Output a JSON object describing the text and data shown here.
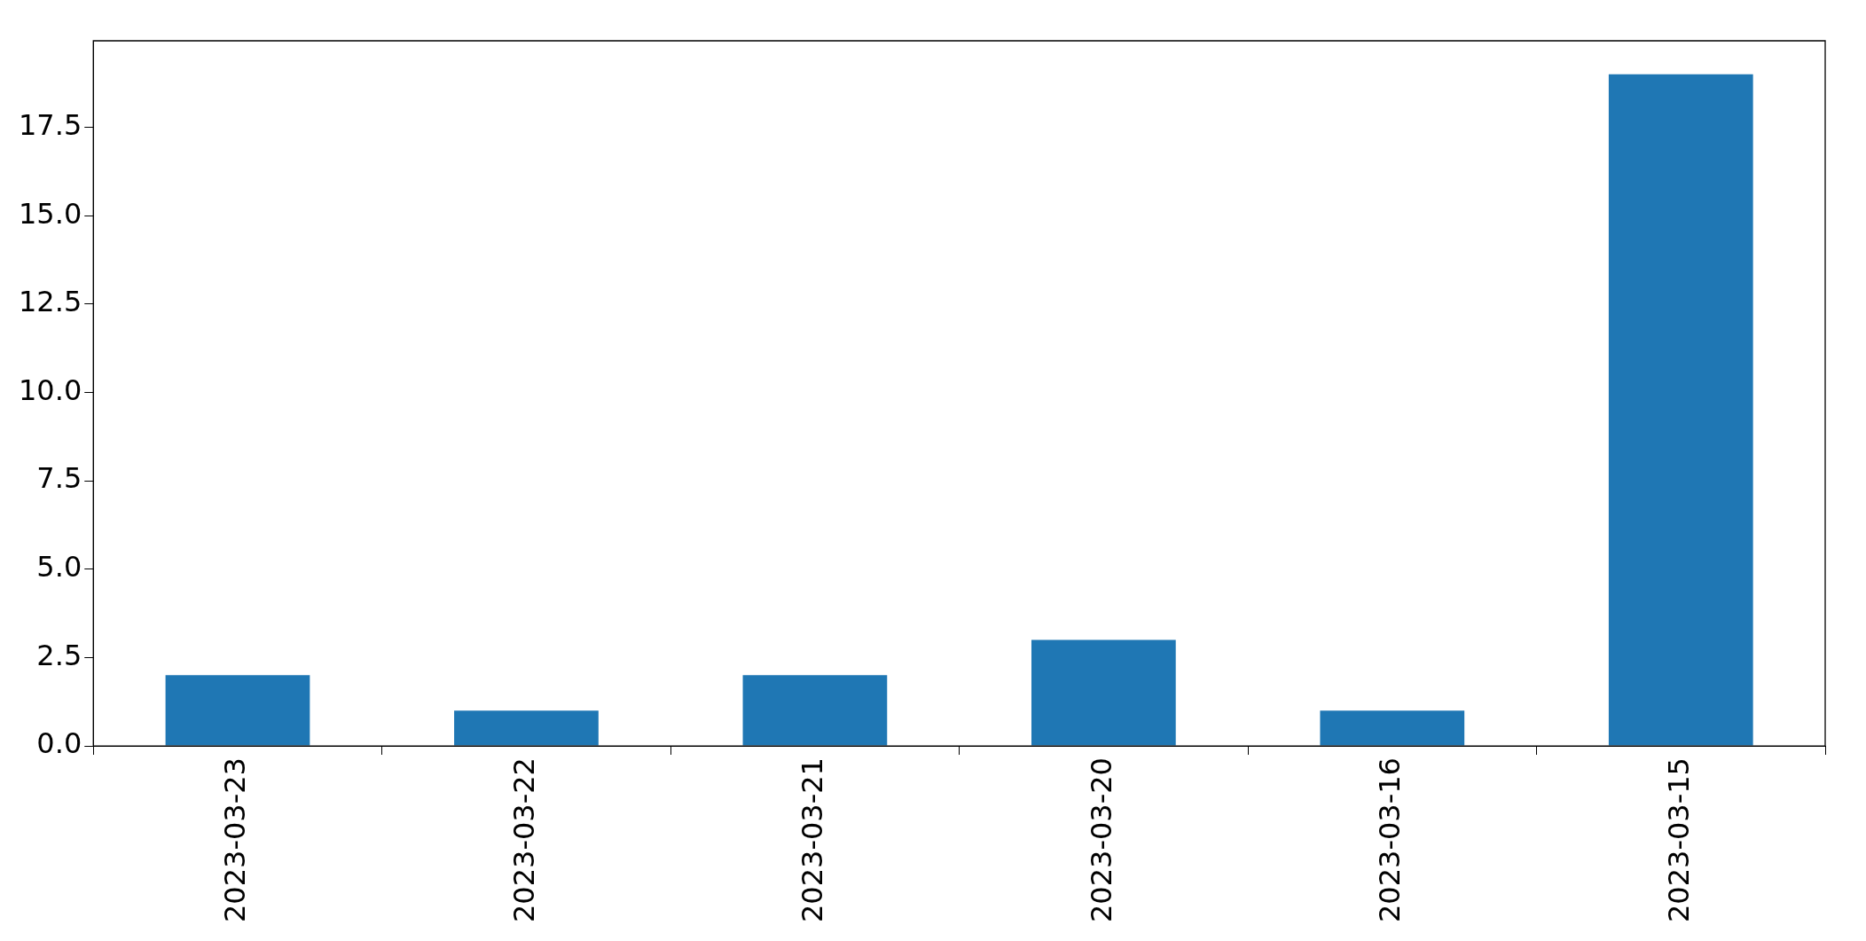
{
  "chart_data": {
    "type": "bar",
    "categories": [
      "2023-03-23",
      "2023-03-22",
      "2023-03-21",
      "2023-03-20",
      "2023-03-16",
      "2023-03-15"
    ],
    "values": [
      2,
      1,
      2,
      3,
      1,
      19
    ],
    "color": "#1f77b4",
    "ylim": [
      0,
      19.95
    ],
    "yticks": [
      {
        "value": 0,
        "label": "0.0"
      },
      {
        "value": 2.5,
        "label": "2.5"
      },
      {
        "value": 5,
        "label": "5.0"
      },
      {
        "value": 7.5,
        "label": "7.5"
      },
      {
        "value": 10,
        "label": "10.0"
      },
      {
        "value": 12.5,
        "label": "12.5"
      },
      {
        "value": 15,
        "label": "15.0"
      },
      {
        "value": 17.5,
        "label": "17.5"
      }
    ]
  }
}
